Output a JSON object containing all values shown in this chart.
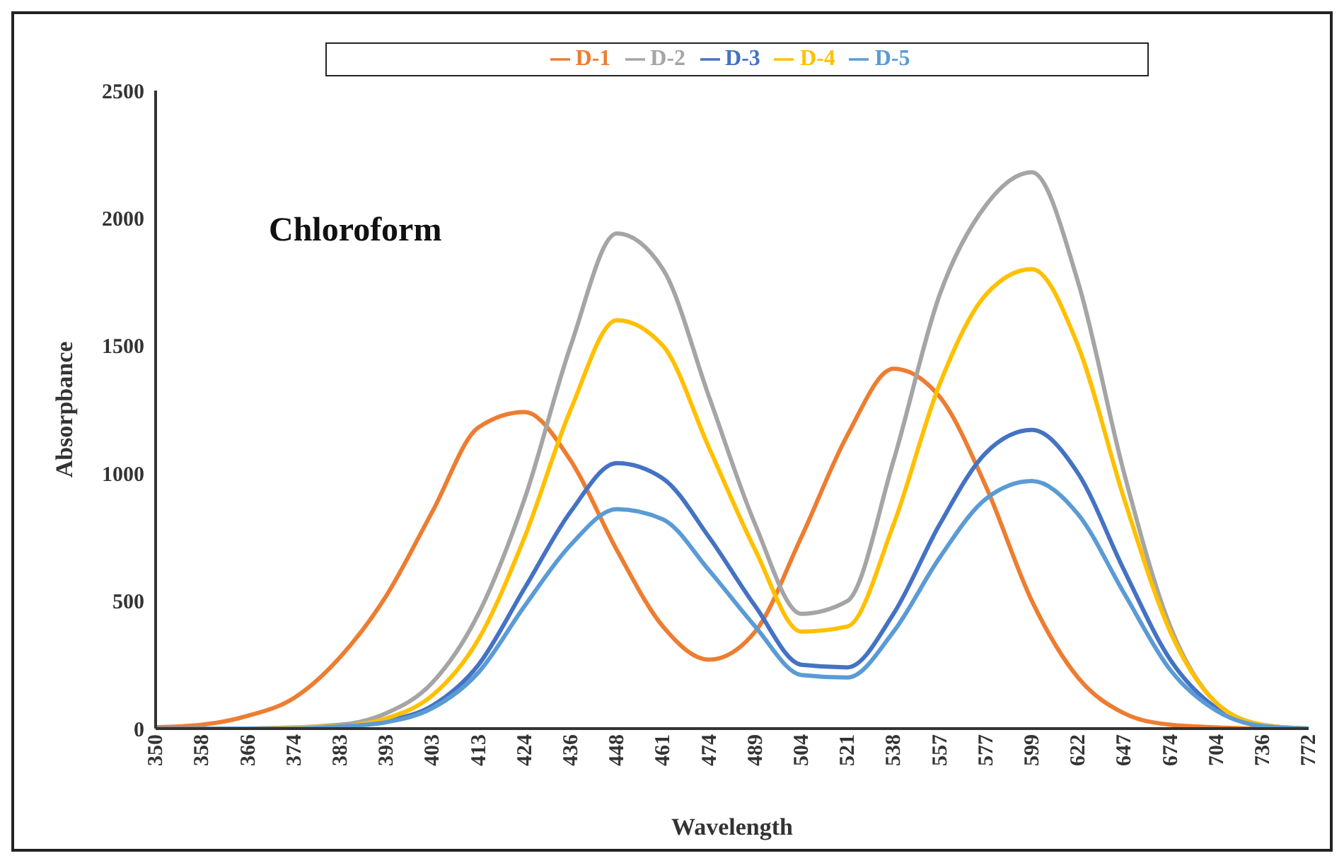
{
  "chart_data": {
    "type": "line",
    "xlabel": "Wavelength",
    "ylabel": "Absorpbance",
    "categories": [
      "350",
      "358",
      "366",
      "374",
      "383",
      "393",
      "403",
      "413",
      "424",
      "436",
      "448",
      "461",
      "474",
      "489",
      "504",
      "521",
      "538",
      "557",
      "577",
      "599",
      "622",
      "647",
      "674",
      "704",
      "736",
      "772"
    ],
    "series": [
      {
        "name": "D-1",
        "color": "#ed7d31",
        "values": [
          5,
          15,
          50,
          120,
          280,
          520,
          850,
          1180,
          1240,
          1050,
          700,
          400,
          270,
          380,
          750,
          1150,
          1410,
          1300,
          950,
          500,
          200,
          60,
          15,
          5,
          0,
          0
        ]
      },
      {
        "name": "D-2",
        "color": "#a5a5a5",
        "values": [
          0,
          0,
          0,
          null,
          15,
          60,
          180,
          450,
          900,
          1500,
          1940,
          1800,
          1300,
          800,
          450,
          500,
          1050,
          1700,
          2050,
          2180,
          1750,
          1000,
          400,
          100,
          15,
          0
        ]
      },
      {
        "name": "D-3",
        "color": "#4472c4",
        "values": [
          0,
          0,
          0,
          0,
          10,
          30,
          90,
          250,
          550,
          850,
          1040,
          980,
          750,
          480,
          250,
          240,
          450,
          800,
          1080,
          1170,
          1000,
          620,
          270,
          80,
          10,
          0
        ]
      },
      {
        "name": "D-4",
        "color": "#ffc000",
        "values": [
          0,
          0,
          0,
          5,
          10,
          40,
          130,
          350,
          750,
          1250,
          1600,
          1500,
          1100,
          700,
          380,
          400,
          800,
          1350,
          1700,
          1800,
          1500,
          900,
          380,
          100,
          15,
          0
        ]
      },
      {
        "name": "D-5",
        "color": "#5b9bd5",
        "values": [
          0,
          0,
          0,
          0,
          8,
          25,
          80,
          220,
          480,
          720,
          860,
          820,
          620,
          400,
          210,
          200,
          380,
          670,
          900,
          970,
          840,
          530,
          230,
          70,
          10,
          0
        ]
      }
    ],
    "ylim": [
      0,
      2500
    ],
    "yticks": [
      0,
      500,
      1000,
      1500,
      2000,
      2500
    ],
    "annotations": [
      "Chloroform"
    ],
    "legend": "top",
    "grid": false,
    "marker": "none",
    "line_style": "solid"
  }
}
